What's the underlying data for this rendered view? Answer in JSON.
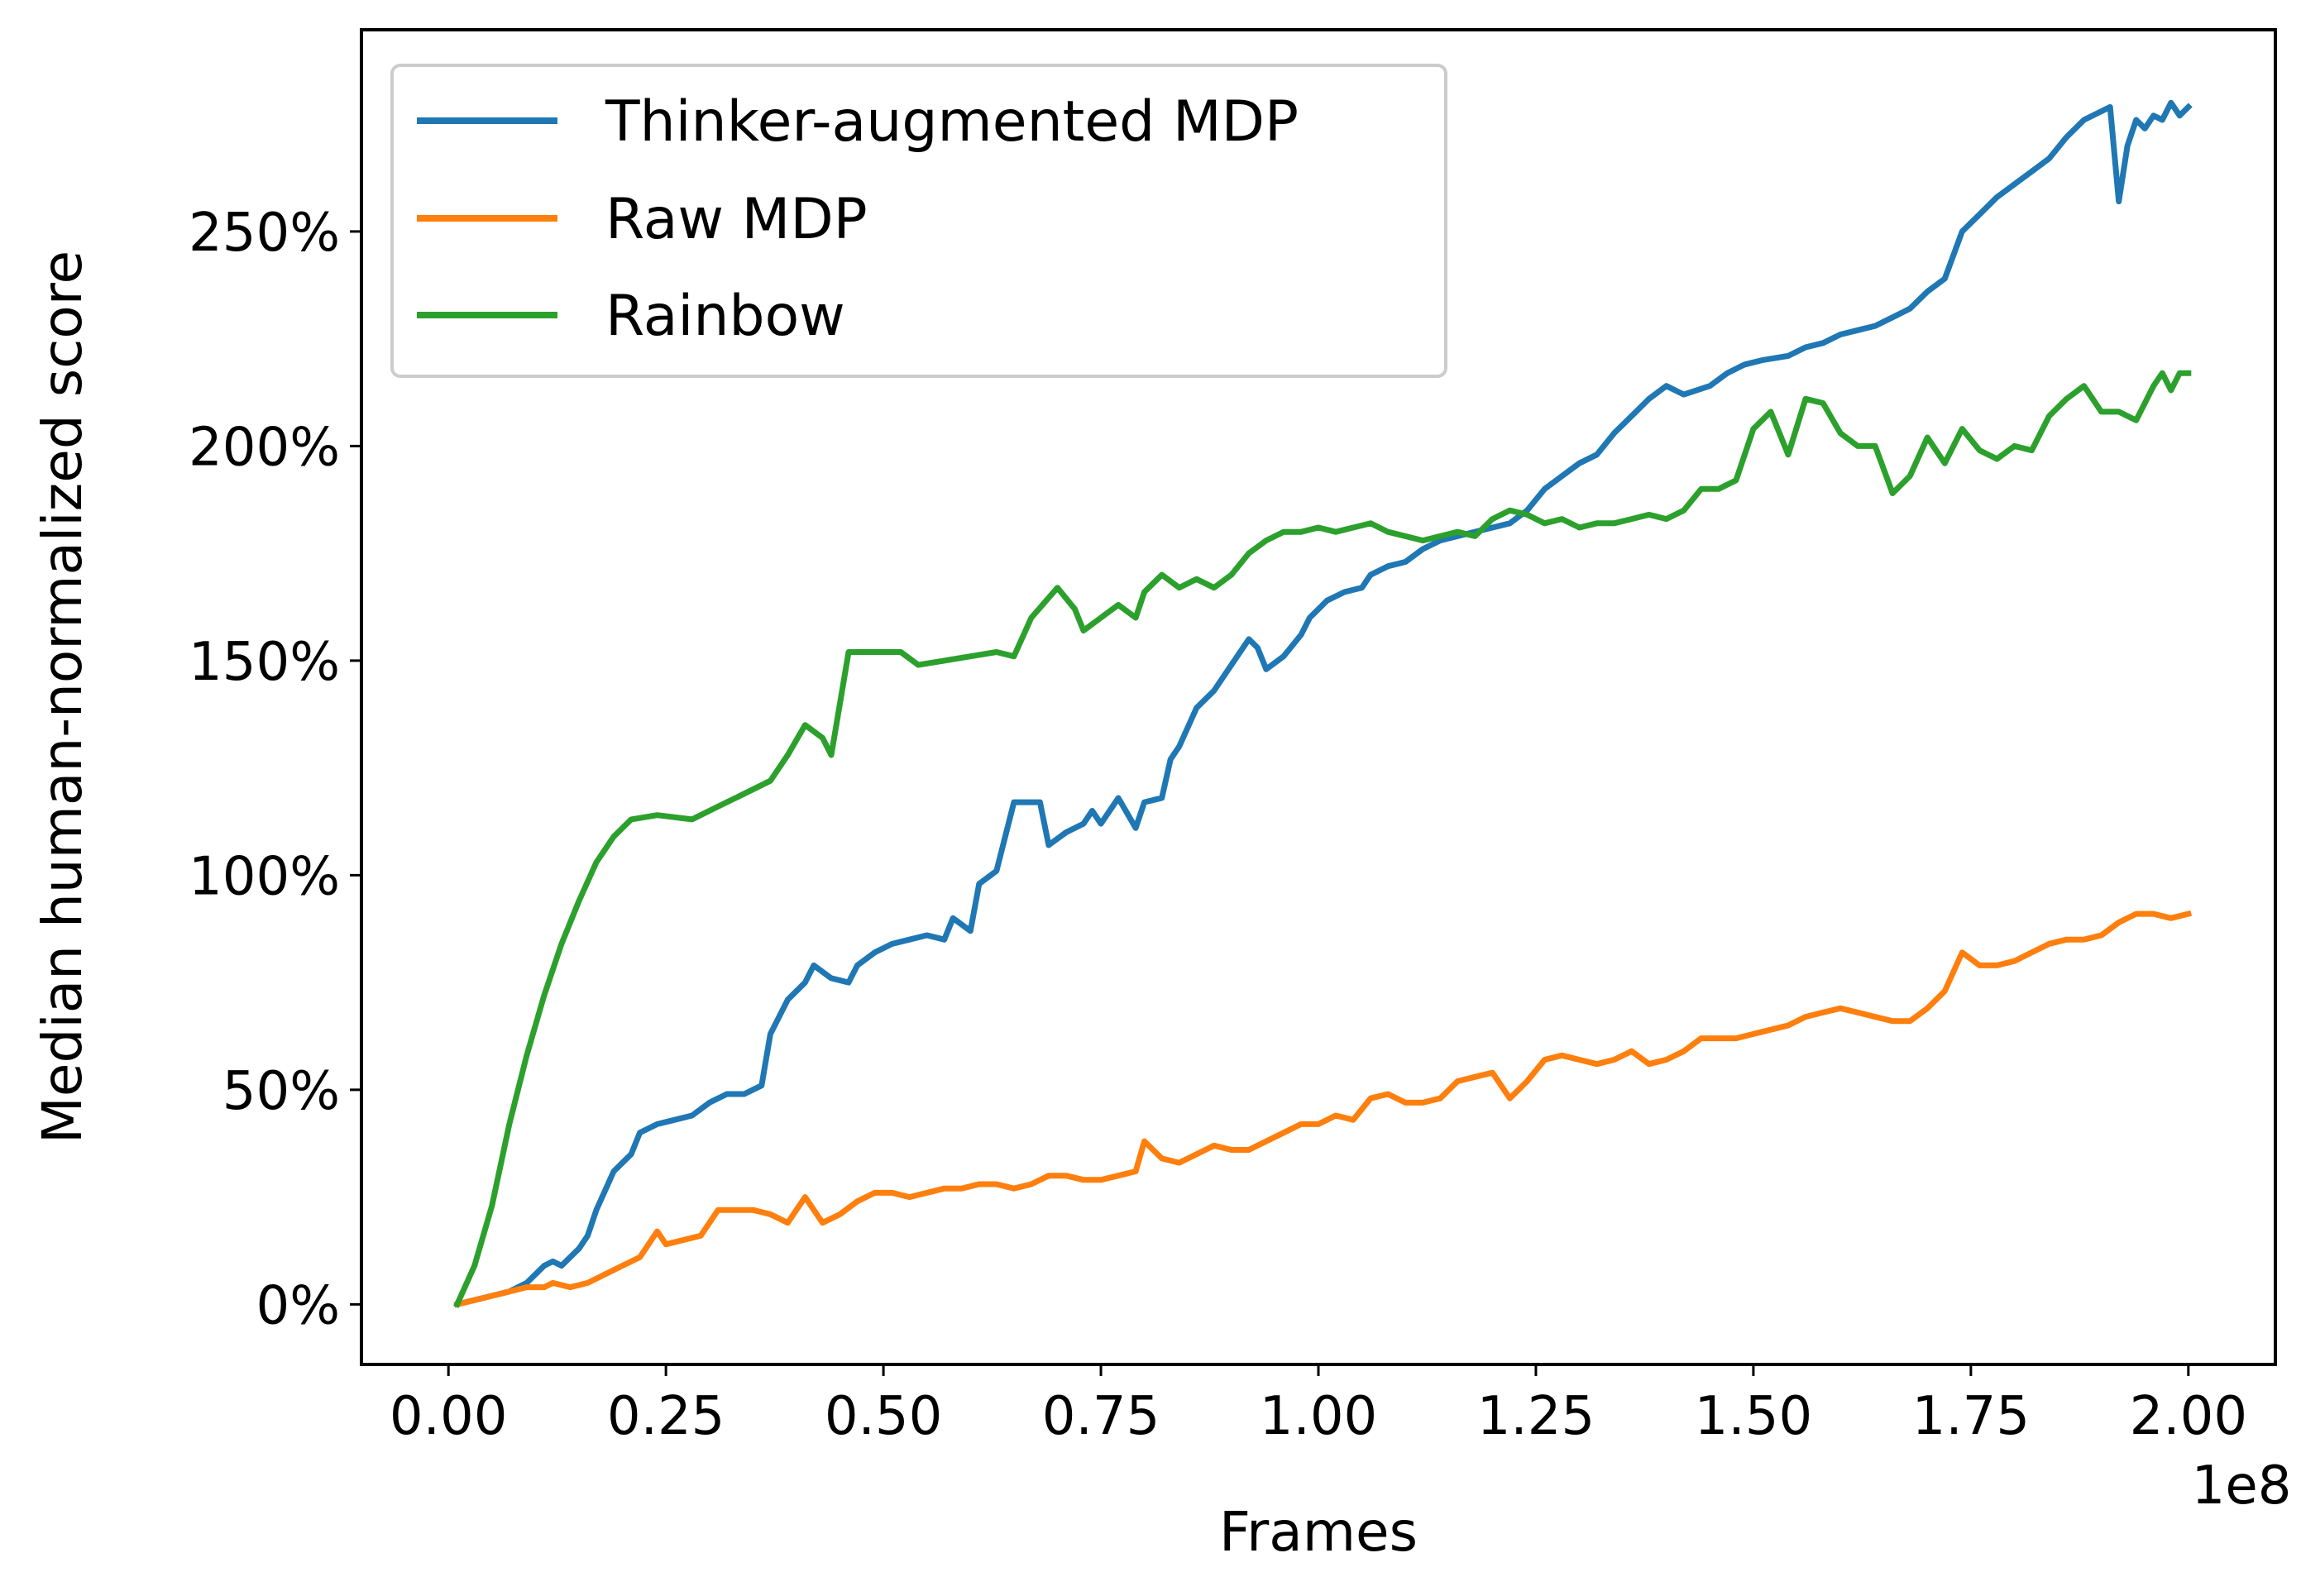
{
  "chart_data": {
    "type": "line",
    "title": "",
    "xlabel": "Frames",
    "ylabel": "Median human-normalized score",
    "x_offset_label": "1e8",
    "xlim": [
      -0.1,
      2.1
    ],
    "ylim": [
      -0.14,
      2.97
    ],
    "x_ticks": [
      0.0,
      0.25,
      0.5,
      0.75,
      1.0,
      1.25,
      1.5,
      1.75,
      2.0
    ],
    "x_tick_labels": [
      "0.00",
      "0.25",
      "0.50",
      "0.75",
      "1.00",
      "1.25",
      "1.50",
      "1.75",
      "2.00"
    ],
    "y_ticks": [
      0.0,
      0.5,
      1.0,
      1.5,
      2.0,
      2.5
    ],
    "y_tick_labels": [
      "0%",
      "50%",
      "100%",
      "150%",
      "200%",
      "250%"
    ],
    "legend_position": "upper-left",
    "series": [
      {
        "name": "Thinker-augmented MDP",
        "color": "#1f77b4",
        "points": [
          [
            0.01,
            0.0
          ],
          [
            0.03,
            0.01
          ],
          [
            0.05,
            0.02
          ],
          [
            0.07,
            0.03
          ],
          [
            0.09,
            0.05
          ],
          [
            0.11,
            0.09
          ],
          [
            0.12,
            0.1
          ],
          [
            0.13,
            0.09
          ],
          [
            0.15,
            0.13
          ],
          [
            0.16,
            0.16
          ],
          [
            0.17,
            0.22
          ],
          [
            0.19,
            0.31
          ],
          [
            0.21,
            0.35
          ],
          [
            0.22,
            0.4
          ],
          [
            0.24,
            0.42
          ],
          [
            0.26,
            0.43
          ],
          [
            0.28,
            0.44
          ],
          [
            0.3,
            0.47
          ],
          [
            0.32,
            0.49
          ],
          [
            0.34,
            0.49
          ],
          [
            0.36,
            0.51
          ],
          [
            0.37,
            0.63
          ],
          [
            0.39,
            0.71
          ],
          [
            0.41,
            0.75
          ],
          [
            0.42,
            0.79
          ],
          [
            0.44,
            0.76
          ],
          [
            0.46,
            0.75
          ],
          [
            0.47,
            0.79
          ],
          [
            0.49,
            0.82
          ],
          [
            0.51,
            0.84
          ],
          [
            0.53,
            0.85
          ],
          [
            0.55,
            0.86
          ],
          [
            0.57,
            0.85
          ],
          [
            0.58,
            0.9
          ],
          [
            0.6,
            0.87
          ],
          [
            0.61,
            0.98
          ],
          [
            0.63,
            1.01
          ],
          [
            0.65,
            1.17
          ],
          [
            0.68,
            1.17
          ],
          [
            0.69,
            1.07
          ],
          [
            0.71,
            1.1
          ],
          [
            0.73,
            1.12
          ],
          [
            0.74,
            1.15
          ],
          [
            0.75,
            1.12
          ],
          [
            0.77,
            1.18
          ],
          [
            0.79,
            1.11
          ],
          [
            0.8,
            1.17
          ],
          [
            0.82,
            1.18
          ],
          [
            0.83,
            1.27
          ],
          [
            0.84,
            1.3
          ],
          [
            0.86,
            1.39
          ],
          [
            0.88,
            1.43
          ],
          [
            0.9,
            1.49
          ],
          [
            0.92,
            1.55
          ],
          [
            0.93,
            1.53
          ],
          [
            0.94,
            1.48
          ],
          [
            0.96,
            1.51
          ],
          [
            0.98,
            1.56
          ],
          [
            0.99,
            1.6
          ],
          [
            1.01,
            1.64
          ],
          [
            1.03,
            1.66
          ],
          [
            1.05,
            1.67
          ],
          [
            1.06,
            1.7
          ],
          [
            1.08,
            1.72
          ],
          [
            1.1,
            1.73
          ],
          [
            1.12,
            1.76
          ],
          [
            1.14,
            1.78
          ],
          [
            1.16,
            1.79
          ],
          [
            1.18,
            1.8
          ],
          [
            1.2,
            1.81
          ],
          [
            1.22,
            1.82
          ],
          [
            1.24,
            1.85
          ],
          [
            1.26,
            1.9
          ],
          [
            1.28,
            1.93
          ],
          [
            1.3,
            1.96
          ],
          [
            1.32,
            1.98
          ],
          [
            1.34,
            2.03
          ],
          [
            1.36,
            2.07
          ],
          [
            1.38,
            2.11
          ],
          [
            1.4,
            2.14
          ],
          [
            1.42,
            2.12
          ],
          [
            1.45,
            2.14
          ],
          [
            1.47,
            2.17
          ],
          [
            1.49,
            2.19
          ],
          [
            1.51,
            2.2
          ],
          [
            1.54,
            2.21
          ],
          [
            1.56,
            2.23
          ],
          [
            1.58,
            2.24
          ],
          [
            1.6,
            2.26
          ],
          [
            1.62,
            2.27
          ],
          [
            1.64,
            2.28
          ],
          [
            1.66,
            2.3
          ],
          [
            1.68,
            2.32
          ],
          [
            1.7,
            2.36
          ],
          [
            1.72,
            2.39
          ],
          [
            1.74,
            2.5
          ],
          [
            1.76,
            2.54
          ],
          [
            1.78,
            2.58
          ],
          [
            1.8,
            2.61
          ],
          [
            1.82,
            2.64
          ],
          [
            1.84,
            2.67
          ],
          [
            1.86,
            2.72
          ],
          [
            1.88,
            2.76
          ],
          [
            1.9,
            2.78
          ],
          [
            1.91,
            2.79
          ],
          [
            1.92,
            2.57
          ],
          [
            1.93,
            2.7
          ],
          [
            1.94,
            2.76
          ],
          [
            1.95,
            2.74
          ],
          [
            1.96,
            2.77
          ],
          [
            1.97,
            2.76
          ],
          [
            1.98,
            2.8
          ],
          [
            1.99,
            2.77
          ],
          [
            2.0,
            2.79
          ]
        ]
      },
      {
        "name": "Raw MDP",
        "color": "#ff7f0e",
        "points": [
          [
            0.01,
            0.0
          ],
          [
            0.03,
            0.01
          ],
          [
            0.05,
            0.02
          ],
          [
            0.07,
            0.03
          ],
          [
            0.09,
            0.04
          ],
          [
            0.11,
            0.04
          ],
          [
            0.12,
            0.05
          ],
          [
            0.14,
            0.04
          ],
          [
            0.16,
            0.05
          ],
          [
            0.18,
            0.07
          ],
          [
            0.2,
            0.09
          ],
          [
            0.22,
            0.11
          ],
          [
            0.24,
            0.17
          ],
          [
            0.25,
            0.14
          ],
          [
            0.27,
            0.15
          ],
          [
            0.29,
            0.16
          ],
          [
            0.31,
            0.22
          ],
          [
            0.33,
            0.22
          ],
          [
            0.35,
            0.22
          ],
          [
            0.37,
            0.21
          ],
          [
            0.39,
            0.19
          ],
          [
            0.41,
            0.25
          ],
          [
            0.43,
            0.19
          ],
          [
            0.45,
            0.21
          ],
          [
            0.47,
            0.24
          ],
          [
            0.49,
            0.26
          ],
          [
            0.51,
            0.26
          ],
          [
            0.53,
            0.25
          ],
          [
            0.55,
            0.26
          ],
          [
            0.57,
            0.27
          ],
          [
            0.59,
            0.27
          ],
          [
            0.61,
            0.28
          ],
          [
            0.63,
            0.28
          ],
          [
            0.65,
            0.27
          ],
          [
            0.67,
            0.28
          ],
          [
            0.69,
            0.3
          ],
          [
            0.71,
            0.3
          ],
          [
            0.73,
            0.29
          ],
          [
            0.75,
            0.29
          ],
          [
            0.77,
            0.3
          ],
          [
            0.79,
            0.31
          ],
          [
            0.8,
            0.38
          ],
          [
            0.82,
            0.34
          ],
          [
            0.84,
            0.33
          ],
          [
            0.86,
            0.35
          ],
          [
            0.88,
            0.37
          ],
          [
            0.9,
            0.36
          ],
          [
            0.92,
            0.36
          ],
          [
            0.94,
            0.38
          ],
          [
            0.96,
            0.4
          ],
          [
            0.98,
            0.42
          ],
          [
            1.0,
            0.42
          ],
          [
            1.02,
            0.44
          ],
          [
            1.04,
            0.43
          ],
          [
            1.06,
            0.48
          ],
          [
            1.08,
            0.49
          ],
          [
            1.1,
            0.47
          ],
          [
            1.12,
            0.47
          ],
          [
            1.14,
            0.48
          ],
          [
            1.16,
            0.52
          ],
          [
            1.18,
            0.53
          ],
          [
            1.2,
            0.54
          ],
          [
            1.22,
            0.48
          ],
          [
            1.24,
            0.52
          ],
          [
            1.26,
            0.57
          ],
          [
            1.28,
            0.58
          ],
          [
            1.3,
            0.57
          ],
          [
            1.32,
            0.56
          ],
          [
            1.34,
            0.57
          ],
          [
            1.36,
            0.59
          ],
          [
            1.38,
            0.56
          ],
          [
            1.4,
            0.57
          ],
          [
            1.42,
            0.59
          ],
          [
            1.44,
            0.62
          ],
          [
            1.46,
            0.62
          ],
          [
            1.48,
            0.62
          ],
          [
            1.5,
            0.63
          ],
          [
            1.52,
            0.64
          ],
          [
            1.54,
            0.65
          ],
          [
            1.56,
            0.67
          ],
          [
            1.58,
            0.68
          ],
          [
            1.6,
            0.69
          ],
          [
            1.62,
            0.68
          ],
          [
            1.64,
            0.67
          ],
          [
            1.66,
            0.66
          ],
          [
            1.68,
            0.66
          ],
          [
            1.7,
            0.69
          ],
          [
            1.72,
            0.73
          ],
          [
            1.74,
            0.82
          ],
          [
            1.76,
            0.79
          ],
          [
            1.78,
            0.79
          ],
          [
            1.8,
            0.8
          ],
          [
            1.82,
            0.82
          ],
          [
            1.84,
            0.84
          ],
          [
            1.86,
            0.85
          ],
          [
            1.88,
            0.85
          ],
          [
            1.9,
            0.86
          ],
          [
            1.92,
            0.89
          ],
          [
            1.94,
            0.91
          ],
          [
            1.96,
            0.91
          ],
          [
            1.98,
            0.9
          ],
          [
            2.0,
            0.91
          ]
        ]
      },
      {
        "name": "Rainbow",
        "color": "#2ca02c",
        "points": [
          [
            0.01,
            0.0
          ],
          [
            0.03,
            0.09
          ],
          [
            0.05,
            0.23
          ],
          [
            0.07,
            0.42
          ],
          [
            0.09,
            0.58
          ],
          [
            0.11,
            0.72
          ],
          [
            0.13,
            0.84
          ],
          [
            0.15,
            0.94
          ],
          [
            0.17,
            1.03
          ],
          [
            0.19,
            1.09
          ],
          [
            0.21,
            1.13
          ],
          [
            0.24,
            1.14
          ],
          [
            0.28,
            1.13
          ],
          [
            0.31,
            1.16
          ],
          [
            0.34,
            1.19
          ],
          [
            0.37,
            1.22
          ],
          [
            0.39,
            1.28
          ],
          [
            0.41,
            1.35
          ],
          [
            0.43,
            1.32
          ],
          [
            0.44,
            1.28
          ],
          [
            0.46,
            1.52
          ],
          [
            0.5,
            1.52
          ],
          [
            0.52,
            1.52
          ],
          [
            0.54,
            1.49
          ],
          [
            0.57,
            1.5
          ],
          [
            0.6,
            1.51
          ],
          [
            0.63,
            1.52
          ],
          [
            0.65,
            1.51
          ],
          [
            0.67,
            1.6
          ],
          [
            0.7,
            1.67
          ],
          [
            0.72,
            1.62
          ],
          [
            0.73,
            1.57
          ],
          [
            0.75,
            1.6
          ],
          [
            0.77,
            1.63
          ],
          [
            0.79,
            1.6
          ],
          [
            0.8,
            1.66
          ],
          [
            0.82,
            1.7
          ],
          [
            0.84,
            1.67
          ],
          [
            0.86,
            1.69
          ],
          [
            0.88,
            1.67
          ],
          [
            0.9,
            1.7
          ],
          [
            0.92,
            1.75
          ],
          [
            0.94,
            1.78
          ],
          [
            0.96,
            1.8
          ],
          [
            0.98,
            1.8
          ],
          [
            1.0,
            1.81
          ],
          [
            1.02,
            1.8
          ],
          [
            1.04,
            1.81
          ],
          [
            1.06,
            1.82
          ],
          [
            1.08,
            1.8
          ],
          [
            1.1,
            1.79
          ],
          [
            1.12,
            1.78
          ],
          [
            1.14,
            1.79
          ],
          [
            1.16,
            1.8
          ],
          [
            1.18,
            1.79
          ],
          [
            1.2,
            1.83
          ],
          [
            1.22,
            1.85
          ],
          [
            1.24,
            1.84
          ],
          [
            1.26,
            1.82
          ],
          [
            1.28,
            1.83
          ],
          [
            1.3,
            1.81
          ],
          [
            1.32,
            1.82
          ],
          [
            1.34,
            1.82
          ],
          [
            1.36,
            1.83
          ],
          [
            1.38,
            1.84
          ],
          [
            1.4,
            1.83
          ],
          [
            1.42,
            1.85
          ],
          [
            1.44,
            1.9
          ],
          [
            1.46,
            1.9
          ],
          [
            1.48,
            1.92
          ],
          [
            1.5,
            2.04
          ],
          [
            1.52,
            2.08
          ],
          [
            1.54,
            1.98
          ],
          [
            1.56,
            2.11
          ],
          [
            1.58,
            2.1
          ],
          [
            1.6,
            2.03
          ],
          [
            1.62,
            2.0
          ],
          [
            1.64,
            2.0
          ],
          [
            1.66,
            1.89
          ],
          [
            1.68,
            1.93
          ],
          [
            1.7,
            2.02
          ],
          [
            1.72,
            1.96
          ],
          [
            1.74,
            2.04
          ],
          [
            1.76,
            1.99
          ],
          [
            1.78,
            1.97
          ],
          [
            1.8,
            2.0
          ],
          [
            1.82,
            1.99
          ],
          [
            1.84,
            2.07
          ],
          [
            1.86,
            2.11
          ],
          [
            1.88,
            2.14
          ],
          [
            1.9,
            2.08
          ],
          [
            1.92,
            2.08
          ],
          [
            1.94,
            2.06
          ],
          [
            1.96,
            2.14
          ],
          [
            1.97,
            2.17
          ],
          [
            1.98,
            2.13
          ],
          [
            1.99,
            2.17
          ],
          [
            2.0,
            2.17
          ]
        ]
      }
    ]
  }
}
